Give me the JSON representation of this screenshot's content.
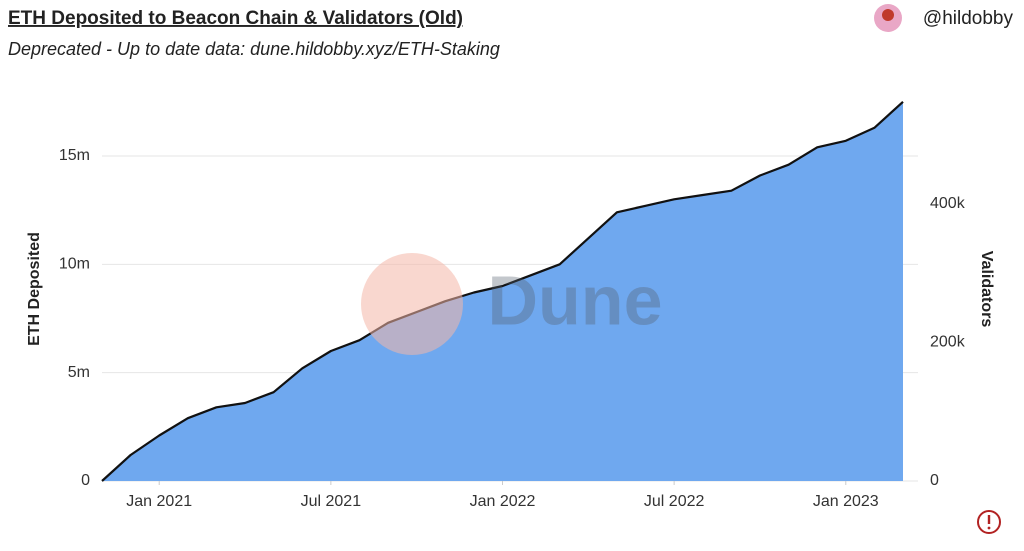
{
  "chart_data": {
    "type": "area",
    "title": "ETH Deposited to Beacon Chain & Validators (Old)",
    "subtitle": "Deprecated - Up to date data: dune.hildobby.xyz/ETH-Staking",
    "author": "@hildobby",
    "watermark": "Dune",
    "y_label": "ETH Deposited",
    "y2_label": "Validators",
    "x": [
      "2020-11",
      "2020-12",
      "2021-01",
      "2021-02",
      "2021-03",
      "2021-04",
      "2021-05",
      "2021-06",
      "2021-07",
      "2021-08",
      "2021-09",
      "2021-10",
      "2021-11",
      "2021-12",
      "2022-01",
      "2022-02",
      "2022-03",
      "2022-04",
      "2022-05",
      "2022-06",
      "2022-07",
      "2022-08",
      "2022-09",
      "2022-10",
      "2022-11",
      "2022-12",
      "2023-01",
      "2023-02",
      "2023-03"
    ],
    "values": [
      0,
      1200000,
      2100000,
      2900000,
      3400000,
      3600000,
      4100000,
      5200000,
      6000000,
      6500000,
      7300000,
      7800000,
      8300000,
      8700000,
      9000000,
      9500000,
      10000000,
      11200000,
      12400000,
      12700000,
      13000000,
      13200000,
      13400000,
      14100000,
      14600000,
      15400000,
      15700000,
      16300000,
      17500000
    ],
    "color": "#6fa8ef",
    "line_color": "#111111",
    "xlim": [
      "2020-11",
      "2023-03"
    ],
    "xticks": [
      {
        "value": "2021-01",
        "label": "Jan 2021"
      },
      {
        "value": "2021-07",
        "label": "Jul 2021"
      },
      {
        "value": "2022-01",
        "label": "Jan 2022"
      },
      {
        "value": "2022-07",
        "label": "Jul 2022"
      },
      {
        "value": "2023-01",
        "label": "Jan 2023"
      }
    ],
    "ylim": [
      0,
      18000000
    ],
    "yticks": [
      0,
      {
        "value": 5000000,
        "label": "5m"
      },
      {
        "value": 10000000,
        "label": "10m"
      },
      {
        "value": 15000000,
        "label": "15m"
      }
    ],
    "y2lim": [
      0,
      562500
    ],
    "y2ticks": [
      0,
      {
        "value": 200000,
        "label": "200k"
      },
      {
        "value": 400000,
        "label": "400k"
      }
    ],
    "grid": true
  }
}
